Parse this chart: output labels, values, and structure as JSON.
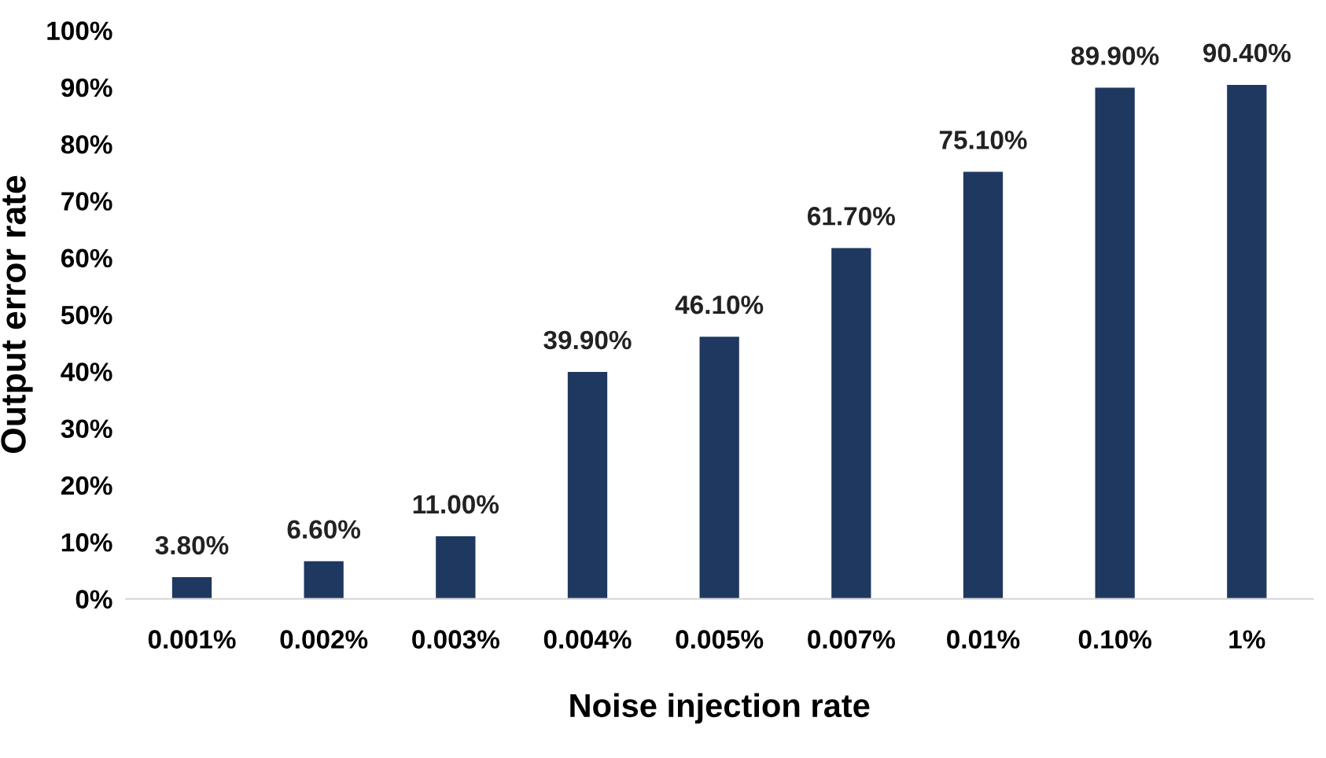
{
  "chart_data": {
    "type": "bar",
    "xlabel": "Noise injection rate",
    "ylabel": "Output error rate",
    "categories": [
      "0.001%",
      "0.002%",
      "0.003%",
      "0.004%",
      "0.005%",
      "0.007%",
      "0.01%",
      "0.10%",
      "1%"
    ],
    "values": [
      3.8,
      6.6,
      11.0,
      39.9,
      46.1,
      61.7,
      75.1,
      89.9,
      90.4
    ],
    "value_labels": [
      "3.80%",
      "6.60%",
      "11.00%",
      "39.90%",
      "46.10%",
      "61.70%",
      "75.10%",
      "89.90%",
      "90.40%"
    ],
    "color": "#1f3860",
    "ylim": [
      0,
      100
    ],
    "yticks": [
      {
        "value": 0,
        "label": "0%"
      },
      {
        "value": 10,
        "label": "10%"
      },
      {
        "value": 20,
        "label": "20%"
      },
      {
        "value": 30,
        "label": "30%"
      },
      {
        "value": 40,
        "label": "40%"
      },
      {
        "value": 50,
        "label": "50%"
      },
      {
        "value": 60,
        "label": "60%"
      },
      {
        "value": 70,
        "label": "70%"
      },
      {
        "value": 80,
        "label": "80%"
      },
      {
        "value": 90,
        "label": "90%"
      },
      {
        "value": 100,
        "label": "100%"
      }
    ],
    "grid": false,
    "legend": false
  }
}
